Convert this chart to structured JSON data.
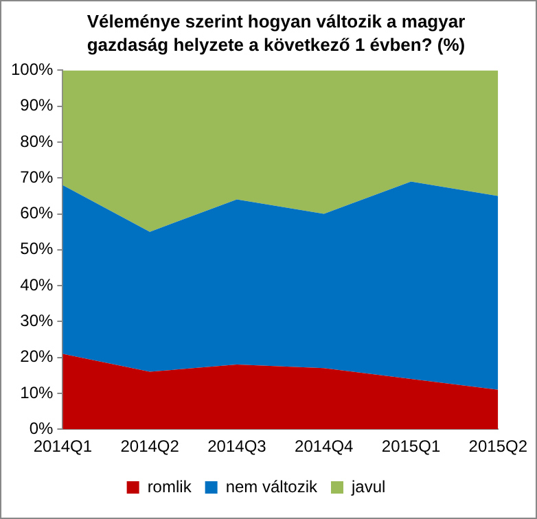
{
  "chart_data": {
    "type": "area",
    "title": "Véleménye szerint hogyan változik a magyar gazdaság helyzete a következő 1 évben? (%)",
    "categories": [
      "2014Q1",
      "2014Q2",
      "2014Q3",
      "2014Q4",
      "2015Q1",
      "2015Q2"
    ],
    "stacked": true,
    "series": [
      {
        "name": "romlik",
        "color": "#c00000",
        "values": [
          21,
          16,
          18,
          17,
          14,
          11
        ]
      },
      {
        "name": "nem változik",
        "color": "#0070c0",
        "values": [
          47,
          39,
          46,
          43,
          55,
          54
        ]
      },
      {
        "name": "javul",
        "color": "#9bbb59",
        "values": [
          32,
          45,
          36,
          40,
          31,
          35
        ]
      }
    ],
    "ylim": [
      0,
      100
    ],
    "yticks": [
      {
        "value": 0,
        "label": "0%"
      },
      {
        "value": 10,
        "label": "10%"
      },
      {
        "value": 20,
        "label": "20%"
      },
      {
        "value": 30,
        "label": "30%"
      },
      {
        "value": 40,
        "label": "40%"
      },
      {
        "value": 50,
        "label": "50%"
      },
      {
        "value": 60,
        "label": "60%"
      },
      {
        "value": 70,
        "label": "70%"
      },
      {
        "value": 80,
        "label": "80%"
      },
      {
        "value": 90,
        "label": "90%"
      },
      {
        "value": 100,
        "label": "100%"
      }
    ],
    "grid": false,
    "legend": "bottom"
  }
}
